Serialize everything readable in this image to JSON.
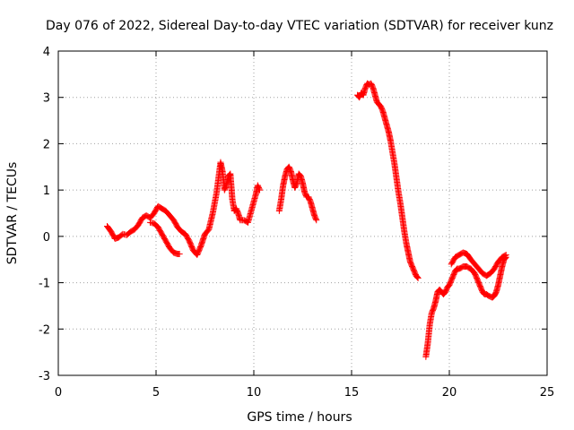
{
  "chart_data": {
    "type": "scatter",
    "title": "Day 076 of 2022, Sidereal Day-to-day VTEC variation (SDTVAR) for receiver kunz",
    "xlabel": "GPS time / hours",
    "ylabel": "SDTVAR / TECUs",
    "xlim": [
      0,
      25
    ],
    "ylim": [
      -3,
      4
    ],
    "x_ticks": [
      "0",
      "5",
      "10",
      "15",
      "20",
      "25"
    ],
    "y_ticks": [
      "-3",
      "-2",
      "-1",
      "0",
      "1",
      "2",
      "3",
      "4"
    ],
    "grid": true,
    "marker": "plus",
    "color": "#ff0000",
    "segments": [
      {
        "x": [
          2.5,
          2.7,
          2.9,
          3.1,
          3.3,
          3.5,
          3.7,
          3.9,
          4.1,
          4.3,
          4.5,
          4.7,
          4.9,
          5.1,
          5.3,
          5.5,
          5.7,
          5.9,
          6.1,
          6.3,
          6.5,
          6.7,
          6.9,
          7.1,
          7.3,
          7.5,
          7.7,
          7.9,
          8.1,
          8.3,
          8.4,
          8.5,
          8.6,
          8.7,
          8.8,
          8.9,
          9.0,
          9.1,
          9.2,
          9.3,
          9.5,
          9.7,
          9.9,
          10.1,
          10.2,
          10.3
        ],
        "y": [
          0.22,
          0.1,
          -0.05,
          -0.02,
          0.05,
          0.03,
          0.1,
          0.15,
          0.25,
          0.4,
          0.45,
          0.4,
          0.5,
          0.65,
          0.6,
          0.55,
          0.45,
          0.35,
          0.2,
          0.1,
          0.05,
          -0.1,
          -0.3,
          -0.4,
          -0.2,
          0.05,
          0.15,
          0.5,
          0.95,
          1.6,
          1.4,
          1.0,
          1.1,
          1.3,
          1.35,
          0.8,
          0.55,
          0.6,
          0.5,
          0.35,
          0.35,
          0.3,
          0.6,
          0.9,
          1.1,
          1.0
        ]
      },
      {
        "x": [
          4.7,
          4.9,
          5.1,
          5.3,
          5.5,
          5.7,
          5.9,
          6.1,
          6.2
        ],
        "y": [
          0.3,
          0.28,
          0.2,
          0.05,
          -0.1,
          -0.25,
          -0.35,
          -0.38,
          -0.38
        ]
      },
      {
        "x": [
          11.3,
          11.4,
          11.5,
          11.6,
          11.7,
          11.8,
          11.9,
          12.0,
          12.1,
          12.2,
          12.3,
          12.4,
          12.5,
          12.6,
          12.7,
          12.8,
          12.9,
          13.0,
          13.1,
          13.2
        ],
        "y": [
          0.55,
          0.8,
          1.1,
          1.3,
          1.45,
          1.5,
          1.4,
          1.2,
          1.05,
          1.15,
          1.35,
          1.3,
          1.15,
          0.95,
          0.85,
          0.85,
          0.75,
          0.6,
          0.45,
          0.35
        ]
      },
      {
        "x": [
          15.3,
          15.4,
          15.5,
          15.6,
          15.7,
          15.8,
          15.9,
          16.0,
          16.1,
          16.2,
          16.3,
          16.4,
          16.5,
          16.6,
          16.7,
          16.8,
          16.9,
          17.0,
          17.1,
          17.2,
          17.3,
          17.4,
          17.5,
          17.6,
          17.7,
          17.8,
          17.9,
          18.0,
          18.1,
          18.2,
          18.3,
          18.4
        ],
        "y": [
          3.05,
          3.0,
          3.1,
          3.05,
          3.2,
          3.3,
          3.28,
          3.3,
          3.2,
          3.05,
          2.9,
          2.85,
          2.8,
          2.7,
          2.55,
          2.4,
          2.25,
          2.05,
          1.8,
          1.55,
          1.25,
          0.95,
          0.7,
          0.4,
          0.1,
          -0.15,
          -0.35,
          -0.55,
          -0.65,
          -0.75,
          -0.85,
          -0.9
        ]
      },
      {
        "x": [
          18.8,
          18.9,
          19.0,
          19.1,
          19.2,
          19.3,
          19.4,
          19.5,
          19.6,
          19.7,
          19.8,
          19.9,
          20.0,
          20.1,
          20.2,
          20.3,
          20.4,
          20.5,
          20.6,
          20.7,
          20.8,
          20.9,
          21.0,
          21.1,
          21.2,
          21.3,
          21.4,
          21.5,
          21.6,
          21.7,
          21.8,
          21.9,
          22.0,
          22.1,
          22.2,
          22.3,
          22.4,
          22.5,
          22.6,
          22.7,
          22.8,
          22.9
        ],
        "y": [
          -2.6,
          -2.3,
          -1.9,
          -1.65,
          -1.55,
          -1.4,
          -1.2,
          -1.15,
          -1.2,
          -1.25,
          -1.2,
          -1.1,
          -1.05,
          -0.95,
          -0.85,
          -0.75,
          -0.7,
          -0.7,
          -0.68,
          -0.65,
          -0.65,
          -0.65,
          -0.68,
          -0.7,
          -0.75,
          -0.8,
          -0.9,
          -1.0,
          -1.1,
          -1.2,
          -1.25,
          -1.25,
          -1.28,
          -1.3,
          -1.32,
          -1.28,
          -1.2,
          -1.05,
          -0.85,
          -0.65,
          -0.5,
          -0.45
        ]
      },
      {
        "x": [
          20.1,
          20.3,
          20.5,
          20.7,
          20.9,
          21.1,
          21.3,
          21.5,
          21.7,
          21.9,
          22.1,
          22.3,
          22.5,
          22.7,
          22.9
        ],
        "y": [
          -0.6,
          -0.45,
          -0.4,
          -0.35,
          -0.38,
          -0.5,
          -0.6,
          -0.7,
          -0.8,
          -0.85,
          -0.8,
          -0.7,
          -0.55,
          -0.45,
          -0.4
        ]
      }
    ]
  }
}
